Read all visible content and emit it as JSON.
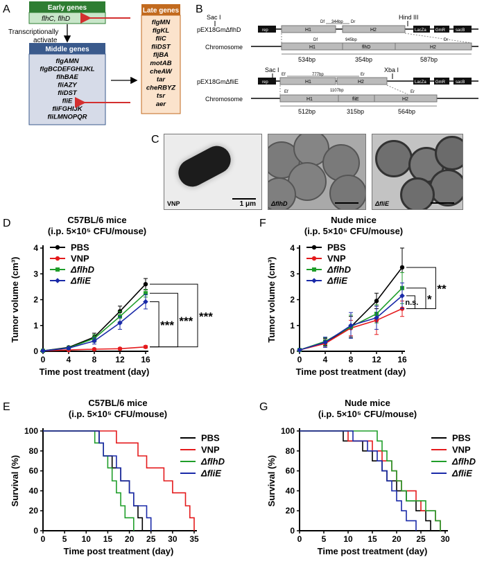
{
  "panel_letters": [
    "A",
    "B",
    "C",
    "D",
    "E",
    "F",
    "G"
  ],
  "panelA": {
    "early_title": "Early genes",
    "early_genes": "flhC, flhD",
    "transcription_label_1": "Transcriptionally",
    "transcription_label_2": "activate",
    "middle_title": "Middle genes",
    "middle_genes": [
      "flgAMN",
      "flgBCDEFGHIJKL",
      "flhBAE",
      "fliAZY",
      "fliDST",
      "fliE",
      "fliFGHIJK",
      "fliLMNOPQR"
    ],
    "late_title": "Late genes",
    "late_genes": [
      "flgMN",
      "flgKL",
      "fliC",
      "fliDST",
      "fljBA",
      "motAB",
      "cheAW",
      "tar",
      "cheRBYZ",
      "tsr",
      "aer"
    ],
    "colors": {
      "early_header": "#2e7d32",
      "early_body": "#c8e6c9",
      "middle_header": "#3a5a8c",
      "middle_body": "#d6dbe8",
      "late_header": "#c26a1e",
      "late_body": "#fbe3cc",
      "arrow": "#d32f2f"
    }
  },
  "panelB": {
    "construct1": {
      "plasmid_label": "pEX18GmΔflhD",
      "sites": [
        "Sac I",
        "Hind III"
      ],
      "blocks": [
        "rep",
        "H1",
        "H2",
        "LacZa",
        "GmR",
        "sacB"
      ],
      "primers": [
        "Df",
        "Dr",
        "Df",
        "Dr"
      ],
      "dist_top": "344bp",
      "dist_mid": "945bp",
      "chromosome_label": "Chromosome",
      "chrom_blocks": [
        "H1",
        "flhD",
        "H2"
      ],
      "lengths": [
        "534bp",
        "354bp",
        "587bp"
      ]
    },
    "construct2": {
      "plasmid_label": "pEX18GmΔfliE",
      "sites": [
        "Sac I",
        "Xba I"
      ],
      "blocks": [
        "rep",
        "H1",
        "H2",
        "LacZa",
        "GmR",
        "sacB"
      ],
      "primers": [
        "Ef",
        "Er",
        "Ef",
        "Er"
      ],
      "dist_top": "777bp",
      "dist_mid": "1107bp",
      "chromosome_label": "Chromosome",
      "chrom_blocks": [
        "H1",
        "fliE",
        "H2"
      ],
      "lengths": [
        "512bp",
        "315bp",
        "564bp"
      ]
    }
  },
  "panelC": {
    "labels": [
      "VNP",
      "ΔflhD",
      "ΔfliE"
    ],
    "scale_bar": "1 μm"
  },
  "chart_data": [
    {
      "id": "D",
      "type": "line",
      "title": "C57BL/6 mice",
      "subtitle": "(i.p. 5×10⁵ CFU/mouse)",
      "xlabel": "Time post treatment (day)",
      "ylabel": "Tumor volume (cm³)",
      "x": [
        0,
        4,
        8,
        12,
        16
      ],
      "xlim": [
        0,
        16
      ],
      "ylim": [
        0,
        4
      ],
      "yticks": [
        0,
        1,
        2,
        3,
        4
      ],
      "series": [
        {
          "name": "PBS",
          "color": "#000000",
          "values": [
            0.02,
            0.15,
            0.55,
            1.55,
            2.6
          ],
          "err": [
            0.02,
            0.05,
            0.15,
            0.2,
            0.22
          ]
        },
        {
          "name": "VNP",
          "color": "#e41a1c",
          "values": [
            0.02,
            0.05,
            0.08,
            0.1,
            0.17
          ],
          "err": [
            0.01,
            0.02,
            0.03,
            0.04,
            0.05
          ]
        },
        {
          "name": "ΔflhD",
          "color": "#1f9e2a",
          "values": [
            0.02,
            0.13,
            0.5,
            1.35,
            2.25
          ],
          "err": [
            0.02,
            0.05,
            0.15,
            0.2,
            0.15
          ]
        },
        {
          "name": "ΔfliE",
          "color": "#1a2aa8",
          "values": [
            0.02,
            0.12,
            0.4,
            1.1,
            1.92
          ],
          "err": [
            0.02,
            0.05,
            0.12,
            0.25,
            0.28
          ]
        }
      ],
      "significance": [
        "***",
        "***",
        "***"
      ]
    },
    {
      "id": "F",
      "type": "line",
      "title": "Nude mice",
      "subtitle": "(i.p. 5×10⁵ CFU/mouse)",
      "xlabel": "Time post treatment (day)",
      "ylabel": "Tumor volume (cm³)",
      "x": [
        0,
        4,
        8,
        12,
        16
      ],
      "xlim": [
        0,
        16
      ],
      "ylim": [
        0,
        4
      ],
      "yticks": [
        0,
        1,
        2,
        3,
        4
      ],
      "series": [
        {
          "name": "PBS",
          "color": "#000000",
          "values": [
            0.05,
            0.35,
            0.95,
            1.95,
            3.25
          ],
          "err": [
            0.02,
            0.15,
            0.4,
            0.3,
            0.75
          ]
        },
        {
          "name": "VNP",
          "color": "#e41a1c",
          "values": [
            0.05,
            0.3,
            0.9,
            1.2,
            1.65
          ],
          "err": [
            0.02,
            0.15,
            0.3,
            0.55,
            0.3
          ]
        },
        {
          "name": "ΔflhD",
          "color": "#1f9e2a",
          "values": [
            0.05,
            0.38,
            0.95,
            1.45,
            2.45
          ],
          "err": [
            0.02,
            0.15,
            0.45,
            0.35,
            0.6
          ]
        },
        {
          "name": "ΔfliE",
          "color": "#1a2aa8",
          "values": [
            0.05,
            0.35,
            1.0,
            1.3,
            2.15
          ],
          "err": [
            0.02,
            0.2,
            0.5,
            0.45,
            0.5
          ]
        }
      ],
      "significance": [
        "n.s.",
        "*",
        "**"
      ]
    },
    {
      "id": "E",
      "type": "line",
      "title": "C57BL/6 mice",
      "subtitle": "(i.p. 5×10⁵ CFU/mouse)",
      "xlabel": "Time post treatment (day)",
      "ylabel": "Survival (%)",
      "xlim": [
        0,
        35
      ],
      "xticks": [
        0,
        5,
        10,
        15,
        20,
        25,
        30,
        35
      ],
      "ylim": [
        0,
        100
      ],
      "yticks": [
        0,
        20,
        40,
        60,
        80,
        100
      ],
      "series": [
        {
          "name": "PBS",
          "color": "#000000",
          "steps": [
            [
              0,
              100
            ],
            [
              13,
              100
            ],
            [
              13,
              88
            ],
            [
              14,
              88
            ],
            [
              14,
              75
            ],
            [
              16,
              75
            ],
            [
              16,
              63
            ],
            [
              18,
              63
            ],
            [
              18,
              50
            ],
            [
              20,
              50
            ],
            [
              20,
              38
            ],
            [
              21,
              38
            ],
            [
              21,
              25
            ],
            [
              22,
              25
            ],
            [
              22,
              13
            ],
            [
              23,
              13
            ],
            [
              23,
              0
            ]
          ]
        },
        {
          "name": "VNP",
          "color": "#e41a1c",
          "steps": [
            [
              0,
              100
            ],
            [
              17,
              100
            ],
            [
              17,
              88
            ],
            [
              22,
              88
            ],
            [
              22,
              75
            ],
            [
              24,
              75
            ],
            [
              24,
              63
            ],
            [
              28,
              63
            ],
            [
              28,
              50
            ],
            [
              30,
              50
            ],
            [
              30,
              38
            ],
            [
              33,
              38
            ],
            [
              33,
              25
            ],
            [
              34,
              25
            ],
            [
              34,
              13
            ],
            [
              35,
              13
            ],
            [
              35,
              0
            ]
          ]
        },
        {
          "name": "ΔflhD",
          "color": "#1f9e2a",
          "steps": [
            [
              0,
              100
            ],
            [
              12,
              100
            ],
            [
              12,
              88
            ],
            [
              14,
              88
            ],
            [
              14,
              75
            ],
            [
              15,
              75
            ],
            [
              15,
              63
            ],
            [
              16,
              63
            ],
            [
              16,
              50
            ],
            [
              17,
              50
            ],
            [
              17,
              38
            ],
            [
              18,
              38
            ],
            [
              18,
              25
            ],
            [
              19,
              25
            ],
            [
              19,
              13
            ],
            [
              21,
              13
            ],
            [
              21,
              0
            ]
          ]
        },
        {
          "name": "ΔfliE",
          "color": "#1a2aa8",
          "steps": [
            [
              0,
              100
            ],
            [
              13,
              100
            ],
            [
              13,
              88
            ],
            [
              14,
              88
            ],
            [
              14,
              75
            ],
            [
              17,
              75
            ],
            [
              17,
              63
            ],
            [
              18,
              63
            ],
            [
              18,
              50
            ],
            [
              20,
              50
            ],
            [
              20,
              38
            ],
            [
              21,
              38
            ],
            [
              21,
              25
            ],
            [
              24,
              25
            ],
            [
              24,
              13
            ],
            [
              25,
              13
            ],
            [
              25,
              0
            ]
          ]
        }
      ]
    },
    {
      "id": "G",
      "type": "line",
      "title": "Nude mice",
      "subtitle": "(i.p. 5×10⁵ CFU/mouse)",
      "xlabel": "Time post treatment (day)",
      "ylabel": "Survival (%)",
      "xlim": [
        0,
        30
      ],
      "xticks": [
        0,
        5,
        10,
        15,
        20,
        25,
        30
      ],
      "ylim": [
        0,
        100
      ],
      "yticks": [
        0,
        20,
        40,
        60,
        80,
        100
      ],
      "series": [
        {
          "name": "PBS",
          "color": "#000000",
          "steps": [
            [
              0,
              100
            ],
            [
              9,
              100
            ],
            [
              9,
              90
            ],
            [
              13,
              90
            ],
            [
              13,
              80
            ],
            [
              15,
              80
            ],
            [
              15,
              70
            ],
            [
              17,
              70
            ],
            [
              17,
              60
            ],
            [
              18,
              60
            ],
            [
              18,
              50
            ],
            [
              20,
              50
            ],
            [
              20,
              40
            ],
            [
              22,
              40
            ],
            [
              22,
              30
            ],
            [
              24,
              30
            ],
            [
              24,
              20
            ],
            [
              26,
              20
            ],
            [
              26,
              10
            ],
            [
              27,
              10
            ],
            [
              27,
              0
            ]
          ]
        },
        {
          "name": "VNP",
          "color": "#e41a1c",
          "steps": [
            [
              0,
              100
            ],
            [
              10,
              100
            ],
            [
              10,
              90
            ],
            [
              15,
              90
            ],
            [
              15,
              80
            ],
            [
              17,
              80
            ],
            [
              17,
              70
            ],
            [
              19,
              70
            ],
            [
              19,
              60
            ],
            [
              20,
              60
            ],
            [
              20,
              50
            ],
            [
              21,
              50
            ],
            [
              21,
              40
            ],
            [
              24,
              40
            ],
            [
              24,
              30
            ],
            [
              25,
              30
            ],
            [
              25,
              20
            ],
            [
              28,
              20
            ],
            [
              28,
              10
            ],
            [
              29,
              10
            ],
            [
              29,
              0
            ]
          ]
        },
        {
          "name": "ΔflhD",
          "color": "#1f9e2a",
          "steps": [
            [
              0,
              100
            ],
            [
              16,
              100
            ],
            [
              16,
              90
            ],
            [
              17,
              90
            ],
            [
              17,
              80
            ],
            [
              18,
              80
            ],
            [
              18,
              70
            ],
            [
              19,
              70
            ],
            [
              19,
              60
            ],
            [
              20,
              60
            ],
            [
              20,
              50
            ],
            [
              21,
              50
            ],
            [
              21,
              40
            ],
            [
              22,
              40
            ],
            [
              22,
              30
            ],
            [
              26,
              30
            ],
            [
              26,
              20
            ],
            [
              28,
              20
            ],
            [
              28,
              10
            ],
            [
              29,
              10
            ],
            [
              29,
              0
            ]
          ]
        },
        {
          "name": "ΔfliE",
          "color": "#1a2aa8",
          "steps": [
            [
              0,
              100
            ],
            [
              11,
              100
            ],
            [
              11,
              90
            ],
            [
              14,
              90
            ],
            [
              14,
              80
            ],
            [
              16,
              80
            ],
            [
              16,
              70
            ],
            [
              17,
              70
            ],
            [
              17,
              60
            ],
            [
              18,
              60
            ],
            [
              18,
              50
            ],
            [
              19,
              50
            ],
            [
              19,
              40
            ],
            [
              20,
              40
            ],
            [
              20,
              30
            ],
            [
              21,
              30
            ],
            [
              21,
              20
            ],
            [
              22,
              20
            ],
            [
              22,
              10
            ],
            [
              24,
              10
            ],
            [
              24,
              0
            ]
          ]
        }
      ]
    }
  ]
}
